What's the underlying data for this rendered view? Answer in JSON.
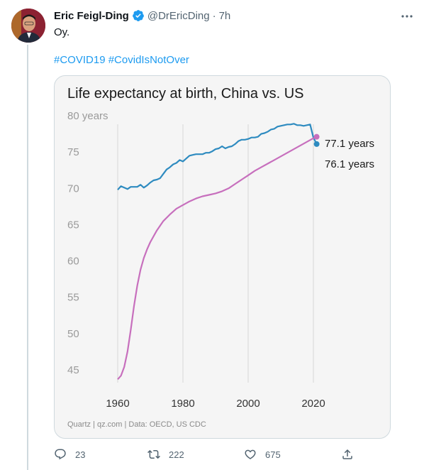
{
  "tweet": {
    "author_name": "Eric Feigl-Ding",
    "handle": "@DrEricDing",
    "separator": "·",
    "time": "7h",
    "text": "Oy.",
    "hashtags": [
      "#COVID19",
      "#CovidIsNotOver"
    ]
  },
  "actions": {
    "replies": "23",
    "retweets": "222",
    "likes": "675"
  },
  "colors": {
    "link": "#1d9bf0",
    "china_line": "#2e8bc0",
    "us_line": "#c76fbd",
    "card_bg": "#f5f5f5"
  },
  "chart_data": {
    "type": "line",
    "title": "Life expectancy at birth, China vs. US",
    "source": "Quartz | qz.com | Data: OECD, US CDC",
    "xlim": [
      1960,
      2020
    ],
    "ylim": [
      43,
      80
    ],
    "x_ticks": [
      "1960",
      "1980",
      "2000",
      "2020"
    ],
    "x_tick_values": [
      1960,
      1980,
      2000,
      2020
    ],
    "y_ticks": [
      "80 years",
      "75",
      "70",
      "65",
      "60",
      "55",
      "50",
      "45"
    ],
    "y_tick_values": [
      80,
      75,
      70,
      65,
      60,
      55,
      50,
      45
    ],
    "end_labels": [
      "77.1 years",
      "76.1 years"
    ],
    "series": [
      {
        "color": "#2e8bc0",
        "x": [
          1960,
          1961,
          1962,
          1963,
          1964,
          1965,
          1966,
          1967,
          1968,
          1969,
          1970,
          1971,
          1972,
          1973,
          1974,
          1975,
          1976,
          1977,
          1978,
          1979,
          1980,
          1981,
          1982,
          1983,
          1984,
          1985,
          1986,
          1987,
          1988,
          1989,
          1990,
          1991,
          1992,
          1993,
          1994,
          1995,
          1996,
          1997,
          1998,
          1999,
          2000,
          2001,
          2002,
          2003,
          2004,
          2005,
          2006,
          2007,
          2008,
          2009,
          2010,
          2011,
          2012,
          2013,
          2014,
          2015,
          2016,
          2017,
          2018,
          2019,
          2020,
          2021
        ],
        "y": [
          69.8,
          70.3,
          70.1,
          69.9,
          70.2,
          70.2,
          70.2,
          70.5,
          70.1,
          70.4,
          70.8,
          71.1,
          71.2,
          71.4,
          72.0,
          72.6,
          72.9,
          73.3,
          73.5,
          73.9,
          73.7,
          74.1,
          74.5,
          74.6,
          74.7,
          74.7,
          74.7,
          74.9,
          74.9,
          75.1,
          75.4,
          75.5,
          75.8,
          75.5,
          75.7,
          75.8,
          76.1,
          76.5,
          76.7,
          76.7,
          76.8,
          77.0,
          77.0,
          77.1,
          77.5,
          77.6,
          77.8,
          78.1,
          78.2,
          78.5,
          78.6,
          78.7,
          78.8,
          78.8,
          78.9,
          78.7,
          78.7,
          78.6,
          78.7,
          78.8,
          77.0,
          76.1
        ]
      },
      {
        "color": "#c76fbd",
        "x": [
          1960,
          1961,
          1962,
          1963,
          1964,
          1965,
          1966,
          1967,
          1968,
          1969,
          1970,
          1972,
          1974,
          1976,
          1978,
          1980,
          1982,
          1984,
          1986,
          1988,
          1990,
          1992,
          1994,
          1996,
          1998,
          2000,
          2002,
          2004,
          2006,
          2008,
          2010,
          2012,
          2014,
          2016,
          2018,
          2020,
          2021
        ],
        "y": [
          43.7,
          44.2,
          45.4,
          47.5,
          50.5,
          53.8,
          56.6,
          58.8,
          60.4,
          61.6,
          62.6,
          64.2,
          65.5,
          66.4,
          67.2,
          67.7,
          68.2,
          68.6,
          68.9,
          69.1,
          69.3,
          69.6,
          70.0,
          70.6,
          71.2,
          71.8,
          72.4,
          72.9,
          73.4,
          73.9,
          74.4,
          74.9,
          75.4,
          75.9,
          76.4,
          76.9,
          77.1
        ]
      }
    ]
  }
}
